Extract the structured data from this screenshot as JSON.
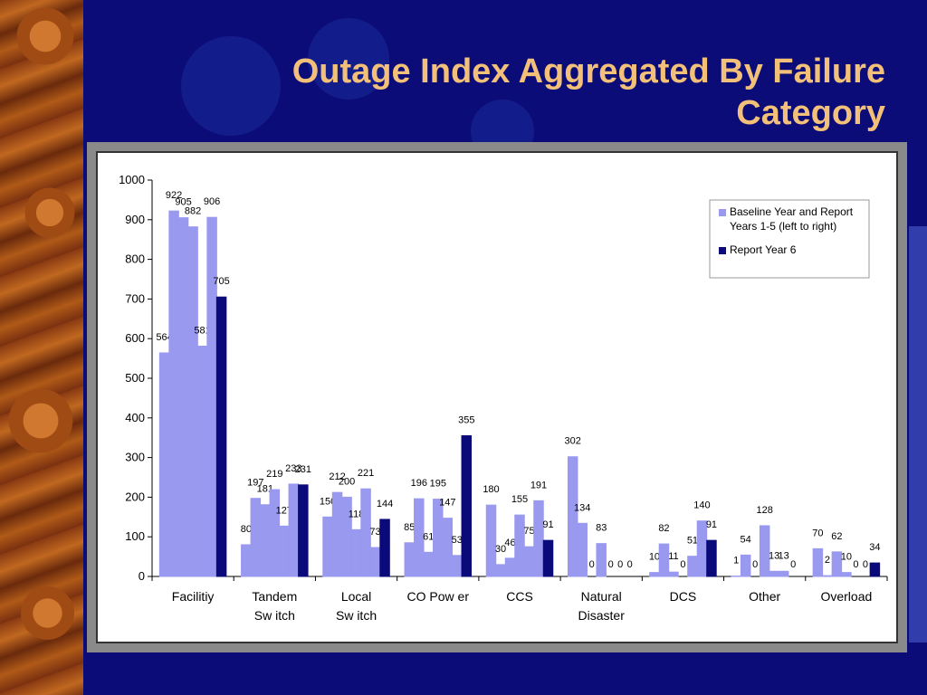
{
  "slide": {
    "title_line1": "Outage Index Aggregated By Failure",
    "title_line2": "Category"
  },
  "colors": {
    "baseline": "#9999f0",
    "report6": "#0a0a7a",
    "title": "#f2c078",
    "background": "#0c0c78"
  },
  "chart_data": {
    "type": "bar",
    "categories": [
      [
        "Facilitiy"
      ],
      [
        "Tandem",
        "Sw itch"
      ],
      [
        "Local",
        "Sw itch"
      ],
      [
        "CO Pow er"
      ],
      [
        "CCS"
      ],
      [
        "Natural",
        "Disaster"
      ],
      [
        "DCS"
      ],
      [
        "Other"
      ],
      [
        "Overload"
      ]
    ],
    "series": [
      {
        "name": "Baseline Year and Report Years 1-5 (left to right)",
        "kind": "baseline"
      },
      {
        "name": "Report Year 6",
        "kind": "report6"
      }
    ],
    "values": [
      [
        564,
        922,
        905,
        882,
        581,
        906,
        705
      ],
      [
        80,
        197,
        181,
        219,
        127,
        233,
        231
      ],
      [
        150,
        212,
        200,
        118,
        221,
        73,
        144
      ],
      [
        85,
        196,
        61,
        195,
        147,
        53,
        355
      ],
      [
        180,
        30,
        46,
        155,
        75,
        191,
        91
      ],
      [
        302,
        134,
        0,
        83,
        0,
        0,
        0
      ],
      [
        10,
        82,
        11,
        0,
        51,
        140,
        91
      ],
      [
        1,
        54,
        0,
        128,
        13,
        13,
        0
      ],
      [
        70,
        2,
        62,
        10,
        0,
        0,
        34
      ]
    ],
    "ylim": [
      0,
      1000
    ],
    "yticks": [
      0,
      100,
      200,
      300,
      400,
      500,
      600,
      700,
      800,
      900,
      1000
    ],
    "legend_position": "top-right",
    "grid": false
  }
}
